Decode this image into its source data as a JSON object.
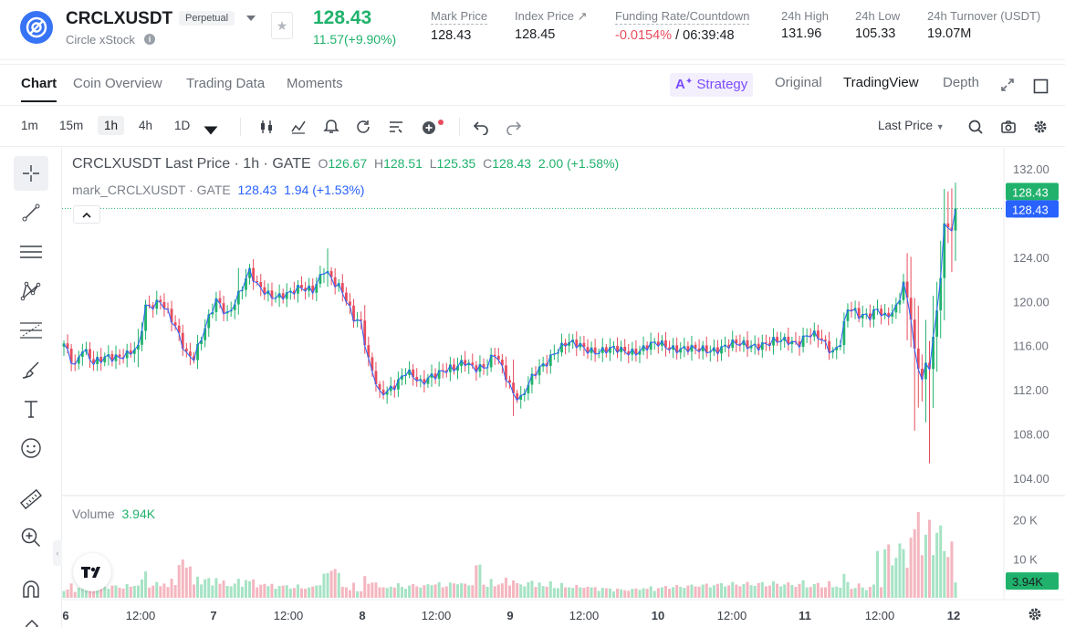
{
  "header": {
    "symbol": "CRCLXUSDT",
    "contract_type": "Perpetual",
    "name": "Circle xStock",
    "last_price": "128.43",
    "change": "11.57(+9.90%)",
    "stats": [
      {
        "label": "Mark Price",
        "value": "128.43"
      },
      {
        "label": "Index Price",
        "value": "128.45"
      },
      {
        "label": "Funding Rate/Countdown",
        "value": "-0.0154%",
        "value2": "/ 06:39:48"
      },
      {
        "label": "24h High",
        "value": "131.96"
      },
      {
        "label": "24h Low",
        "value": "105.33"
      },
      {
        "label": "24h Turnover (USDT)",
        "value": "19.07M"
      }
    ]
  },
  "tabs": [
    "Chart",
    "Coin Overview",
    "Trading Data",
    "Moments"
  ],
  "views": {
    "strategy": "Strategy",
    "original": "Original",
    "tradingview": "TradingView",
    "depth": "Depth"
  },
  "toolbar": {
    "intervals": [
      "1m",
      "15m",
      "1h",
      "4h",
      "1D"
    ],
    "active_interval": "1h",
    "price_type": "Last Price"
  },
  "legend": {
    "title": "CRCLXUSDT Last Price · 1h · GATE",
    "o_label": "O",
    "o": "126.67",
    "h_label": "H",
    "h": "128.51",
    "l_label": "L",
    "l": "125.35",
    "c_label": "C",
    "c": "128.43",
    "change": "2.00 (+1.58%)",
    "mark_title": "mark_CRCLXUSDT · GATE",
    "mark_value": "128.43",
    "mark_change": "1.94 (+1.53%)",
    "volume_label": "Volume",
    "volume_value": "3.94K"
  },
  "colors": {
    "up": "#20b26c",
    "down": "#e74c5e",
    "mark_line": "#2962ff",
    "accent": "#7c4dff"
  },
  "chart_data": {
    "type": "candlestick",
    "interval": "1h",
    "price_axis": {
      "ticks": [
        "132.00",
        "128.00",
        "124.00",
        "120.00",
        "116.00",
        "112.00",
        "108.00",
        "104.00"
      ],
      "range": [
        102.5,
        133.5
      ]
    },
    "volume_axis": {
      "ticks": [
        "20 K",
        "10 K"
      ],
      "range": [
        0,
        26000
      ]
    },
    "time_axis": [
      "6",
      "12:00",
      "7",
      "12:00",
      "8",
      "12:00",
      "9",
      "12:00",
      "10",
      "12:00",
      "11",
      "12:00",
      "12"
    ],
    "last_price_label": "128.43",
    "mark_price_label": "128.43",
    "volume_last_label": "3.94K",
    "anchors": [
      [
        0,
        116.2
      ],
      [
        3,
        114.4
      ],
      [
        5,
        115.8
      ],
      [
        8,
        114.2
      ],
      [
        12,
        115.2
      ],
      [
        17,
        115.1
      ],
      [
        20,
        115.6
      ],
      [
        22,
        119.6
      ],
      [
        26,
        120.2
      ],
      [
        30,
        117.5
      ],
      [
        33,
        115.3
      ],
      [
        35,
        115.2
      ],
      [
        38,
        117.6
      ],
      [
        41,
        119.9
      ],
      [
        44,
        118.9
      ],
      [
        47,
        120.8
      ],
      [
        50,
        122.6
      ],
      [
        52,
        121.3
      ],
      [
        55,
        120.8
      ],
      [
        58,
        120.6
      ],
      [
        61,
        120.6
      ],
      [
        64,
        121.2
      ],
      [
        67,
        121.3
      ],
      [
        70,
        122.9
      ],
      [
        73,
        121.4
      ],
      [
        75,
        120.9
      ],
      [
        78,
        118.8
      ],
      [
        80,
        118.2
      ],
      [
        82,
        114.5
      ],
      [
        85,
        111.5
      ],
      [
        88,
        112.3
      ],
      [
        92,
        113.6
      ],
      [
        96,
        112.5
      ],
      [
        99,
        113.5
      ],
      [
        102,
        113.8
      ],
      [
        105,
        113.7
      ],
      [
        108,
        114.6
      ],
      [
        111,
        114.2
      ],
      [
        114,
        114.1
      ],
      [
        116,
        115.1
      ],
      [
        119,
        113.3
      ],
      [
        121,
        111.9
      ],
      [
        123,
        111.3
      ],
      [
        125,
        112.4
      ],
      [
        127,
        113.4
      ],
      [
        130,
        114.6
      ],
      [
        132,
        115.6
      ],
      [
        135,
        116.2
      ],
      [
        140,
        115.8
      ],
      [
        145,
        115.6
      ],
      [
        150,
        115.5
      ],
      [
        155,
        115.7
      ],
      [
        160,
        116.1
      ],
      [
        165,
        115.9
      ],
      [
        170,
        115.5
      ],
      [
        175,
        115.8
      ],
      [
        180,
        116.0
      ],
      [
        185,
        116.2
      ],
      [
        190,
        116.1
      ],
      [
        195,
        116.6
      ],
      [
        198,
        116.4
      ],
      [
        200,
        116.9
      ],
      [
        203,
        116.7
      ],
      [
        205,
        116.2
      ],
      [
        207,
        115.6
      ],
      [
        209,
        116.5
      ],
      [
        211,
        119.3
      ],
      [
        214,
        118.6
      ],
      [
        217,
        118.9
      ],
      [
        219,
        119.6
      ],
      [
        221,
        118.6
      ],
      [
        223,
        118.8
      ],
      [
        224,
        119.2
      ],
      [
        226,
        121.4
      ],
      [
        228,
        119.3
      ],
      [
        229,
        115.6
      ],
      [
        231,
        113.4
      ],
      [
        233,
        114.1
      ],
      [
        235,
        118.4
      ],
      [
        237,
        126.6
      ],
      [
        239,
        127.3
      ],
      [
        240,
        128.43
      ]
    ],
    "volume_bars": 241
  },
  "sidebar_tools": [
    "crosshair",
    "trend-line",
    "horizontal-lines",
    "pattern",
    "fib",
    "brush",
    "text",
    "emoji",
    "ruler",
    "zoom-in",
    "magnet",
    "pencil"
  ]
}
